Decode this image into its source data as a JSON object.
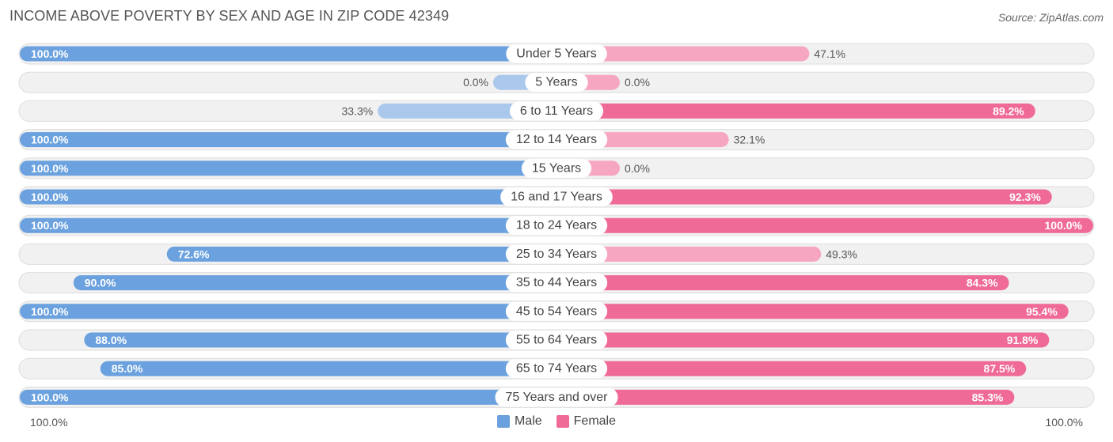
{
  "title": "INCOME ABOVE POVERTY BY SEX AND AGE IN ZIP CODE 42349",
  "source": "Source: ZipAtlas.com",
  "colors": {
    "male_strong": "#6aa1de",
    "male_light": "#aac8ec",
    "female_strong": "#f06a97",
    "female_light": "#f7a6c1",
    "track": "#f1f1f1",
    "track_border": "#dddddd"
  },
  "legend": {
    "male": "Male",
    "female": "Female"
  },
  "axis": {
    "left_tick": "100.0%",
    "right_tick": "100.0%"
  },
  "chart_data": {
    "type": "bar",
    "orientation": "horizontal-diverging",
    "xlim": [
      0,
      100
    ],
    "categories": [
      "Under 5 Years",
      "5 Years",
      "6 to 11 Years",
      "12 to 14 Years",
      "15 Years",
      "16 and 17 Years",
      "18 to 24 Years",
      "25 to 34 Years",
      "35 to 44 Years",
      "45 to 54 Years",
      "55 to 64 Years",
      "65 to 74 Years",
      "75 Years and over"
    ],
    "series": [
      {
        "name": "Male",
        "values": [
          100.0,
          0.0,
          33.3,
          100.0,
          100.0,
          100.0,
          100.0,
          72.6,
          90.0,
          100.0,
          88.0,
          85.0,
          100.0
        ],
        "labels": [
          "100.0%",
          "0.0%",
          "33.3%",
          "100.0%",
          "100.0%",
          "100.0%",
          "100.0%",
          "72.6%",
          "90.0%",
          "100.0%",
          "88.0%",
          "85.0%",
          "100.0%"
        ]
      },
      {
        "name": "Female",
        "values": [
          47.1,
          0.0,
          89.2,
          32.1,
          0.0,
          92.3,
          100.0,
          49.3,
          84.3,
          95.4,
          91.8,
          87.5,
          85.3
        ],
        "labels": [
          "47.1%",
          "0.0%",
          "89.2%",
          "32.1%",
          "0.0%",
          "92.3%",
          "100.0%",
          "49.3%",
          "84.3%",
          "95.4%",
          "91.8%",
          "87.5%",
          "85.3%"
        ]
      }
    ]
  }
}
